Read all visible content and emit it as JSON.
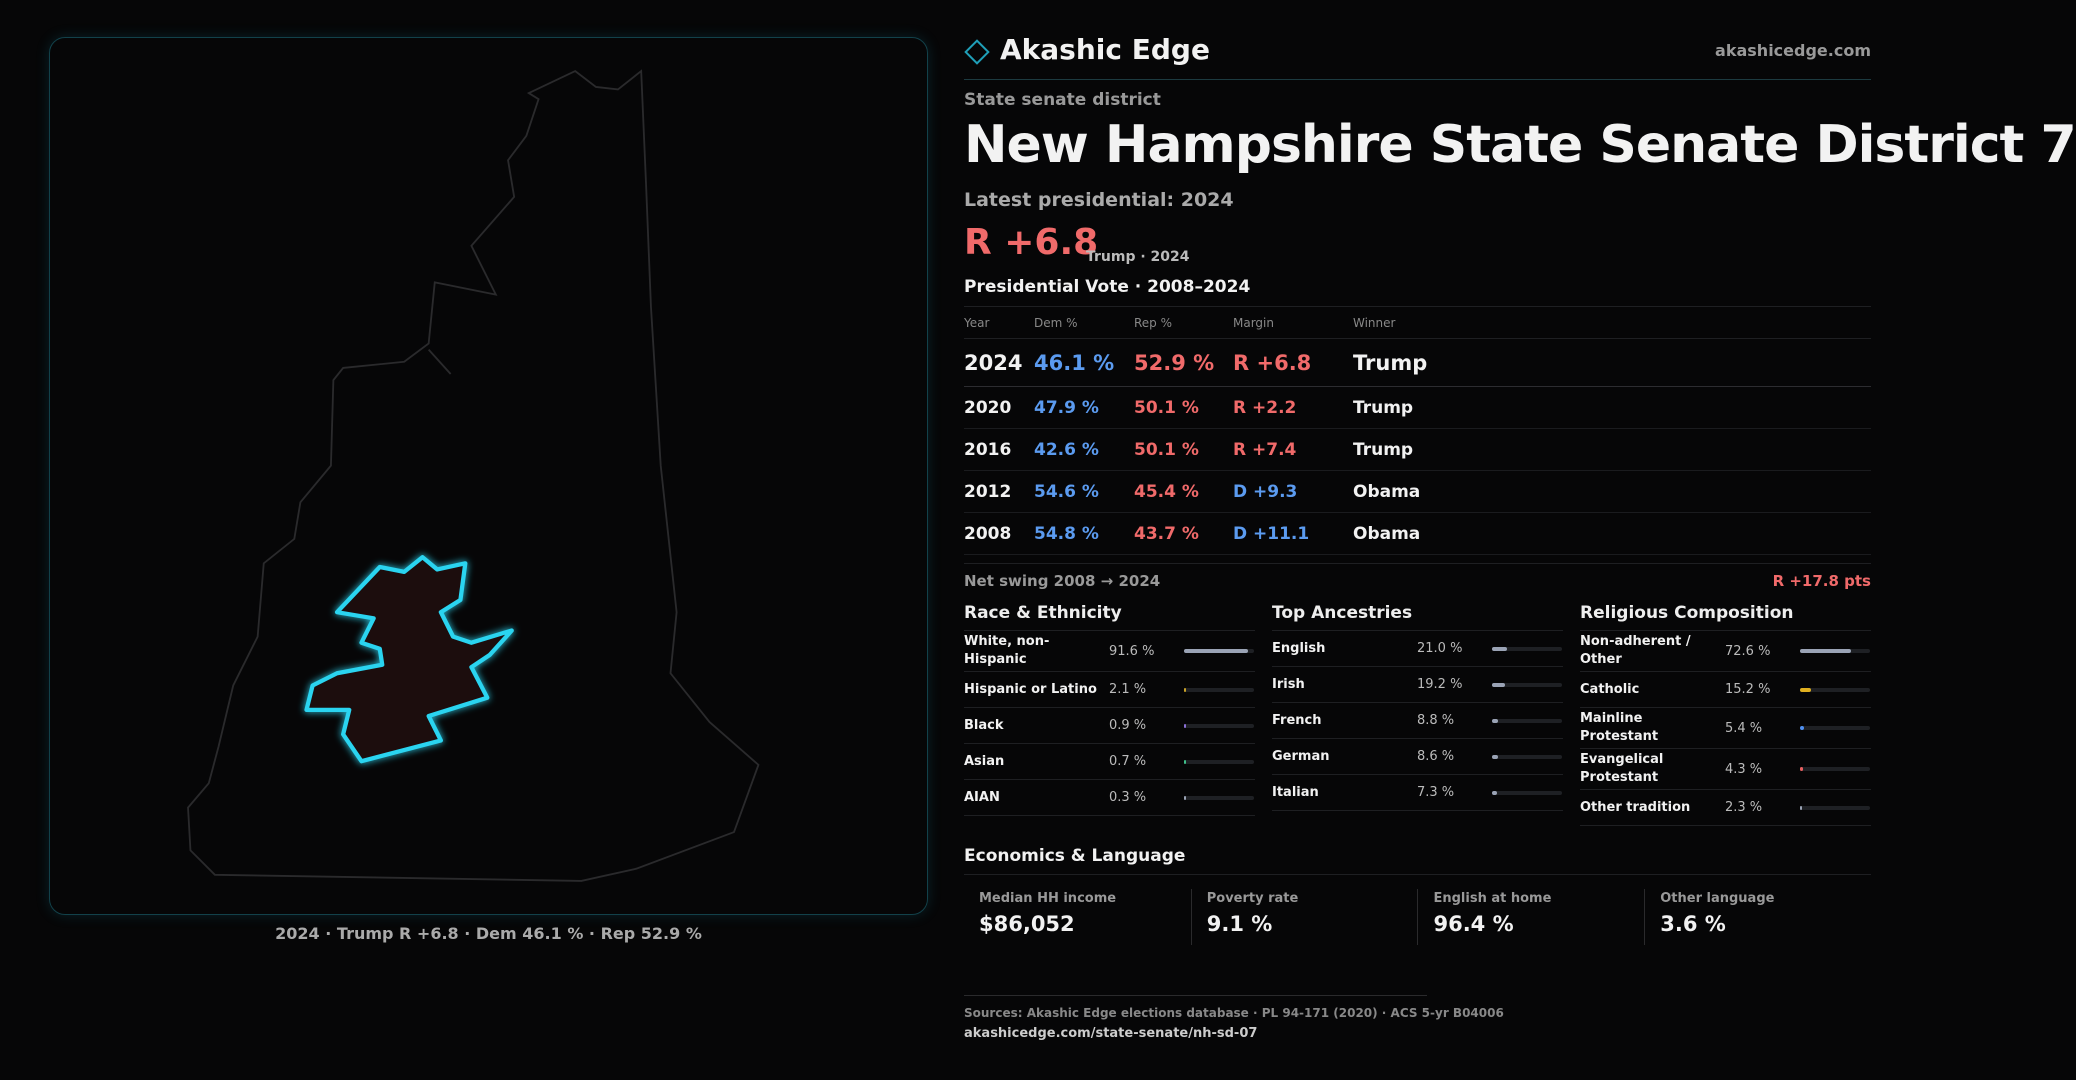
{
  "brand": {
    "name": "Akashic Edge",
    "domain": "akashicedge.com"
  },
  "header": {
    "kicker": "State senate district",
    "title": "New Hampshire State Senate District 7",
    "latest": "Latest presidential: 2024",
    "margin": "R +6.8",
    "margin_note": "Trump · 2024"
  },
  "map": {
    "caption": "2024 · Trump R +6.8 · Dem 46.1 % · Rep 52.9 %"
  },
  "table": {
    "title": "Presidential Vote · 2008–2024",
    "columns": [
      "Year",
      "Dem %",
      "Rep %",
      "Margin",
      "Winner"
    ],
    "rows": [
      [
        "2024",
        "46.1 %",
        "52.9 %",
        "R +6.8",
        "Trump"
      ],
      [
        "2020",
        "47.9 %",
        "50.1 %",
        "R +2.2",
        "Trump"
      ],
      [
        "2016",
        "42.6 %",
        "50.1 %",
        "R +7.4",
        "Trump"
      ],
      [
        "2012",
        "54.6 %",
        "45.4 %",
        "D +9.3",
        "Obama"
      ],
      [
        "2008",
        "54.8 %",
        "43.7 %",
        "D +11.1",
        "Obama"
      ]
    ]
  },
  "swing": {
    "label": "Net swing 2008 → 2024",
    "value": "R +17.8 pts"
  },
  "race": {
    "title": "Race & Ethnicity",
    "rows": [
      {
        "label": "White, non-Hispanic",
        "value": 91.6,
        "value_label": "91.6 %",
        "color": "#9aa3b5"
      },
      {
        "label": "Hispanic or Latino",
        "value": 2.1,
        "value_label": "2.1 %",
        "color": "#c9a227"
      },
      {
        "label": "Black",
        "value": 0.9,
        "value_label": "0.9 %",
        "color": "#8a6fd6"
      },
      {
        "label": "Asian",
        "value": 0.7,
        "value_label": "0.7 %",
        "color": "#3fbf8a"
      },
      {
        "label": "AIAN",
        "value": 0.3,
        "value_label": "0.3 %",
        "color": "#9aa3b5"
      }
    ]
  },
  "ancestry": {
    "title": "Top Ancestries",
    "rows": [
      {
        "label": "English",
        "value": 21.0,
        "value_label": "21.0 %",
        "color": "#9aa3b5"
      },
      {
        "label": "Irish",
        "value": 19.2,
        "value_label": "19.2 %",
        "color": "#9aa3b5"
      },
      {
        "label": "French",
        "value": 8.8,
        "value_label": "8.8 %",
        "color": "#9aa3b5"
      },
      {
        "label": "German",
        "value": 8.6,
        "value_label": "8.6 %",
        "color": "#9aa3b5"
      },
      {
        "label": "Italian",
        "value": 7.3,
        "value_label": "7.3 %",
        "color": "#9aa3b5"
      }
    ]
  },
  "religion": {
    "title": "Religious Composition",
    "rows": [
      {
        "label": "Non-adherent / Other",
        "value": 72.6,
        "value_label": "72.6 %",
        "color": "#9aa3b5"
      },
      {
        "label": "Catholic",
        "value": 15.2,
        "value_label": "15.2 %",
        "color": "#e0b020"
      },
      {
        "label": "Mainline Protestant",
        "value": 5.4,
        "value_label": "5.4 %",
        "color": "#4f8ff0"
      },
      {
        "label": "Evangelical Protestant",
        "value": 4.3,
        "value_label": "4.3 %",
        "color": "#e86060"
      },
      {
        "label": "Other tradition",
        "value": 2.3,
        "value_label": "2.3 %",
        "color": "#9aa3b5"
      }
    ]
  },
  "economics": {
    "title": "Economics & Language",
    "cards": [
      {
        "label": "Median HH income",
        "value": "$86,052"
      },
      {
        "label": "Poverty rate",
        "value": "9.1 %"
      },
      {
        "label": "English at home",
        "value": "96.4 %"
      },
      {
        "label": "Other language",
        "value": "3.6 %"
      }
    ]
  },
  "footer": {
    "sources": "Sources: Akashic Edge elections database · PL 94-171 (2020) · ACS 5-yr B04006",
    "url": "akashicedge.com/state-senate/nh-sd-07"
  }
}
